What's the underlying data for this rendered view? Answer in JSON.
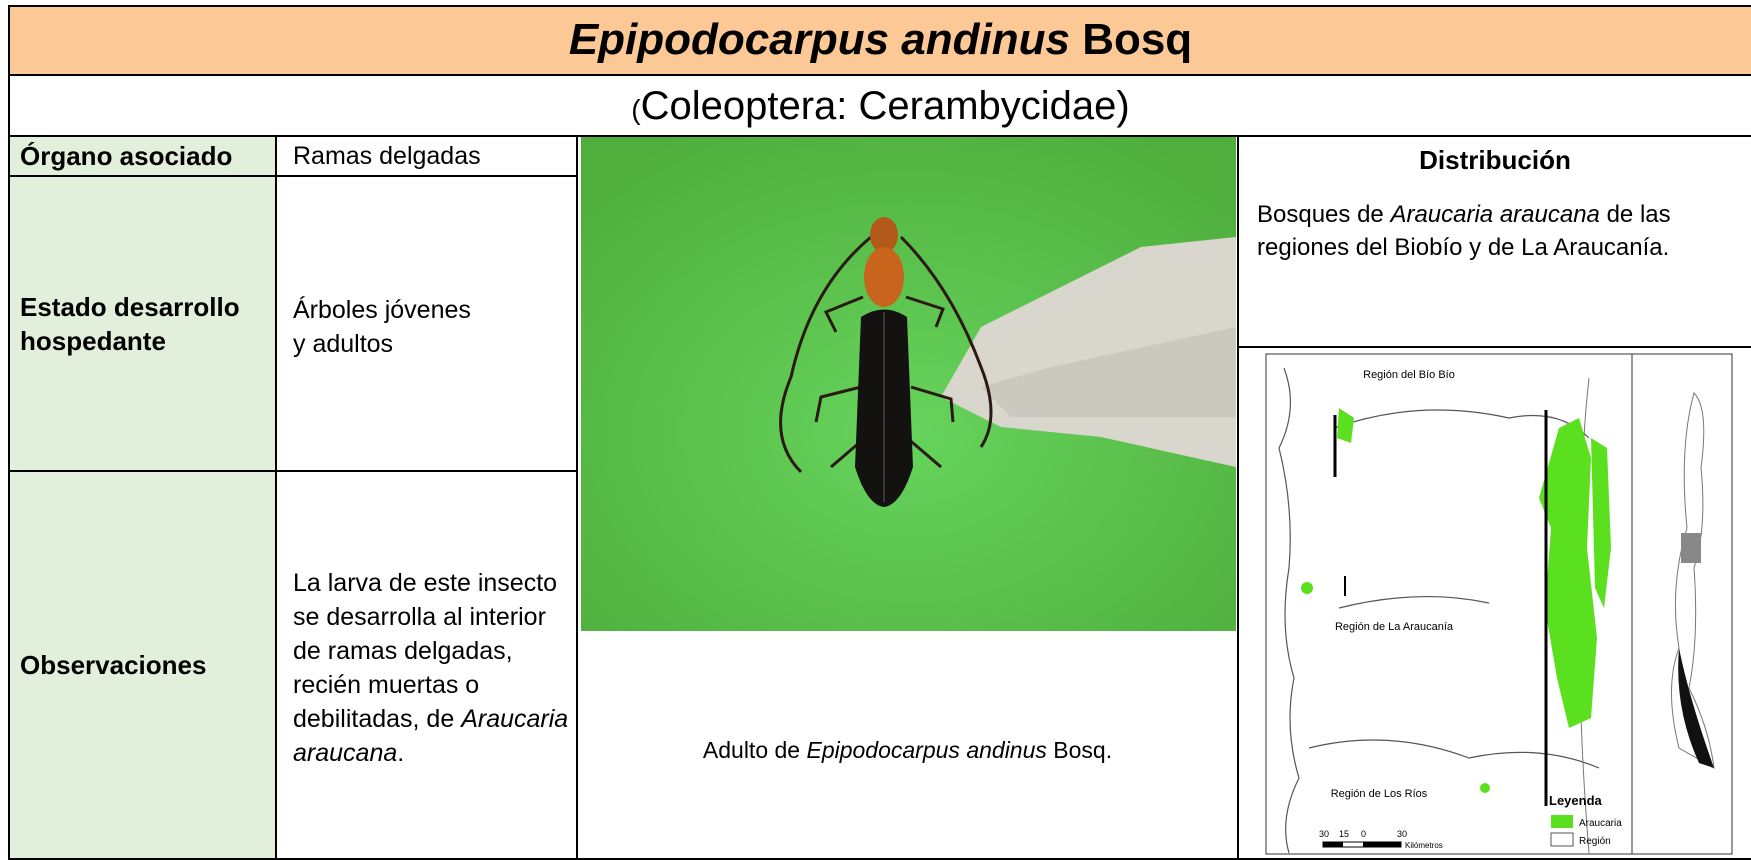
{
  "header": {
    "title": [
      "Epipodocarpus andinus ",
      "Bosq"
    ],
    "subtitle": [
      "(",
      "Coleoptera: Cerambycidae)"
    ]
  },
  "rows": [
    {
      "label": "Órgano asociado",
      "value": [
        "Ramas delgadas"
      ]
    },
    {
      "label": "Estado desarrollo hospedante",
      "value": [
        "Árboles jóvenes y adultos"
      ]
    },
    {
      "label": "Observaciones",
      "value": [
        "La larva de este insecto se desarrolla al interior de ramas delgadas, recién muertas o debilitadas, de ",
        "Araucaria araucana",
        "."
      ]
    }
  ],
  "photo": {
    "caption": [
      "Adulto de ",
      "Epipodocarpus andinus",
      " Bosq."
    ]
  },
  "distribution": {
    "title": "Distribución",
    "text": [
      "Bosques de ",
      "Araucaria araucana",
      " de las regiones del Biobío y de La Araucanía."
    ]
  },
  "map": {
    "regions": [
      "Región del Bío Bío",
      "Región de La Araucanía",
      "Región de Los Ríos"
    ],
    "legend_title": "Leyenda",
    "legend": [
      "Araucaria",
      "Región"
    ],
    "scale": [
      "30",
      "15",
      "0",
      "30"
    ],
    "scale_unit": "Kilómetros"
  }
}
